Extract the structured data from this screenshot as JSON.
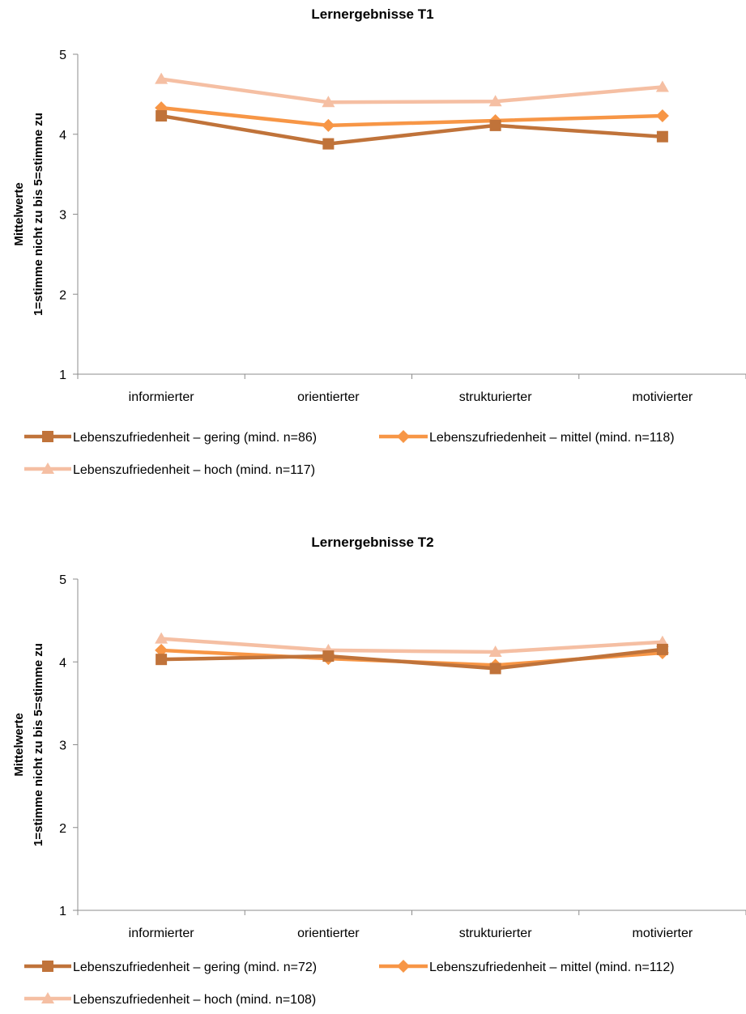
{
  "chart_data": [
    {
      "type": "line",
      "title": "Lernergebnisse T1",
      "ylabel": [
        "Mittelwerte",
        "1=stimme nicht zu bis 5=stimme zu"
      ],
      "xlabel": "",
      "categories": [
        "informierter",
        "orientierter",
        "strukturierter",
        "motivierter"
      ],
      "ylim": [
        1,
        5
      ],
      "yticks": [
        1,
        2,
        3,
        4,
        5
      ],
      "grid": false,
      "legend_position": "bottom",
      "series": [
        {
          "name": "Lebenszufriedenheit – gering (mind. n=86)",
          "values": [
            4.23,
            3.88,
            4.11,
            3.97
          ],
          "color": "#C0733A",
          "marker": "square"
        },
        {
          "name": "Lebenszufriedenheit – mittel (mind. n=118)",
          "values": [
            4.33,
            4.11,
            4.17,
            4.23
          ],
          "color": "#F79646",
          "marker": "diamond"
        },
        {
          "name": "Lebenszufriedenheit – hoch (mind. n=117)",
          "values": [
            4.69,
            4.4,
            4.41,
            4.59
          ],
          "color": "#F5BFA3",
          "marker": "triangle"
        }
      ]
    },
    {
      "type": "line",
      "title": "Lernergebnisse T2",
      "ylabel": [
        "Mittelwerte",
        "1=stimme nicht zu bis 5=stimme zu"
      ],
      "xlabel": "",
      "categories": [
        "informierter",
        "orientierter",
        "strukturierter",
        "motivierter"
      ],
      "ylim": [
        1,
        5
      ],
      "yticks": [
        1,
        2,
        3,
        4,
        5
      ],
      "grid": false,
      "legend_position": "bottom",
      "series": [
        {
          "name": "Lebenszufriedenheit – gering (mind. n=72)",
          "values": [
            4.03,
            4.07,
            3.92,
            4.15
          ],
          "color": "#C0733A",
          "marker": "square"
        },
        {
          "name": "Lebenszufriedenheit – mittel (mind. n=112)",
          "values": [
            4.14,
            4.04,
            3.96,
            4.11
          ],
          "color": "#F79646",
          "marker": "diamond"
        },
        {
          "name": "Lebenszufriedenheit – hoch (mind. n=108)",
          "values": [
            4.28,
            4.14,
            4.12,
            4.24
          ],
          "color": "#F5BFA3",
          "marker": "triangle"
        }
      ]
    }
  ]
}
